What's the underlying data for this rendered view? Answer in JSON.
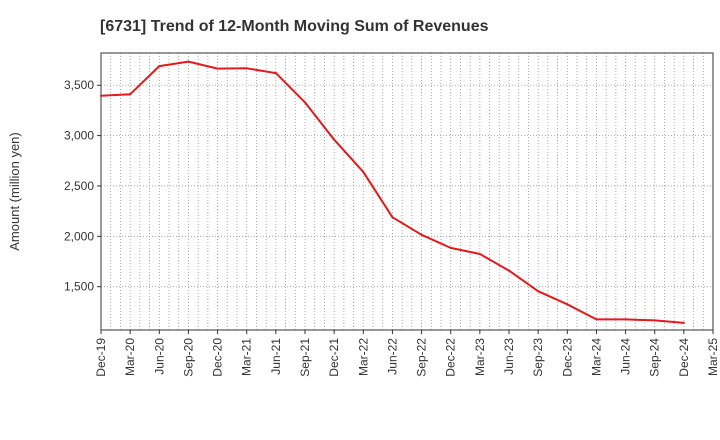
{
  "chart_data": {
    "type": "line",
    "title": "[6731]  Trend of 12-Month Moving Sum of Revenues",
    "ylabel": "Amount (million yen)",
    "xlabel": "",
    "x_tick_labels": [
      "Dec-19",
      "Mar-20",
      "Jun-20",
      "Sep-20",
      "Dec-20",
      "Mar-21",
      "Jun-21",
      "Sep-21",
      "Dec-21",
      "Mar-22",
      "Jun-22",
      "Sep-22",
      "Dec-22",
      "Mar-23",
      "Jun-23",
      "Sep-23",
      "Dec-23",
      "Mar-24",
      "Jun-24",
      "Sep-24",
      "Dec-24",
      "Mar-25"
    ],
    "y_ticks": [
      1500,
      2000,
      2500,
      3000,
      3500
    ],
    "y_tick_labels": [
      "1,500",
      "2,000",
      "2,500",
      "3,000",
      "3,500"
    ],
    "ylim": [
      1070,
      3820
    ],
    "grid": true,
    "series": [
      {
        "color": "#e31a1c",
        "x": [
          "Dec-19",
          "Mar-20",
          "Jun-20",
          "Sep-20",
          "Dec-20",
          "Mar-21",
          "Jun-21",
          "Sep-21",
          "Dec-21",
          "Mar-22",
          "Jun-22",
          "Sep-22",
          "Dec-22",
          "Mar-23",
          "Jun-23",
          "Sep-23",
          "Dec-23",
          "Mar-24",
          "Jun-24",
          "Sep-24",
          "Dec-24"
        ],
        "values": [
          3395,
          3410,
          3690,
          3735,
          3665,
          3668,
          3620,
          3330,
          2960,
          2640,
          2190,
          2015,
          1885,
          1825,
          1660,
          1455,
          1325,
          1175,
          1175,
          1165,
          1140
        ]
      }
    ]
  }
}
